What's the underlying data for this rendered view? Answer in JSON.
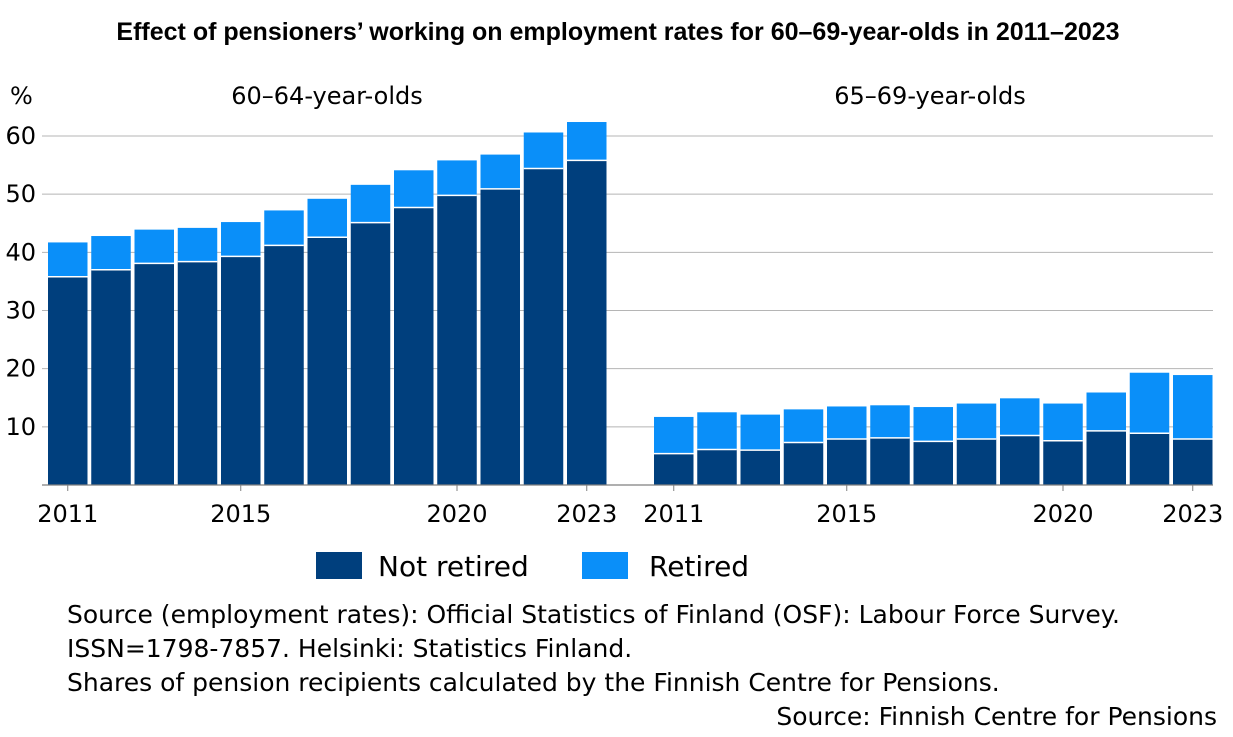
{
  "chart_data": {
    "type": "bar",
    "stacked": true,
    "title": "Effect of pensioners’ working on employment rates for 60–69-year-olds in 2011–2023",
    "ylabel": "%",
    "ylim": [
      0,
      65
    ],
    "yticks": [
      10,
      20,
      30,
      40,
      50,
      60
    ],
    "grid": true,
    "legend_position": "bottom",
    "colors": {
      "not_retired": "#003f7d",
      "retired": "#0a8ff9",
      "grid": "#b5b5b5",
      "axis": "#7f7f7f"
    },
    "legend": [
      {
        "key": "not_retired",
        "label": "Not retired"
      },
      {
        "key": "retired",
        "label": "Retired"
      }
    ],
    "panels": [
      {
        "label": "60–64-year-olds",
        "years": [
          2011,
          2012,
          2013,
          2014,
          2015,
          2016,
          2017,
          2018,
          2019,
          2020,
          2021,
          2022,
          2023
        ],
        "tick_labels": [
          "2011",
          "2015",
          "2020",
          "2023"
        ],
        "tick_years": [
          2011,
          2015,
          2020,
          2023
        ],
        "series": [
          {
            "name": "Not retired",
            "key": "not_retired",
            "values": [
              35.8,
              37.0,
              38.1,
              38.4,
              39.3,
              41.2,
              42.6,
              45.1,
              47.7,
              49.8,
              50.9,
              54.4,
              55.8
            ]
          },
          {
            "name": "Retired",
            "key": "retired",
            "values": [
              5.9,
              5.8,
              5.8,
              5.8,
              5.9,
              6.0,
              6.6,
              6.5,
              6.4,
              6.0,
              5.9,
              6.2,
              6.6
            ]
          }
        ]
      },
      {
        "label": "65–69-year-olds",
        "years": [
          2011,
          2012,
          2013,
          2014,
          2015,
          2016,
          2017,
          2018,
          2019,
          2020,
          2021,
          2022,
          2023
        ],
        "tick_labels": [
          "2011",
          "2015",
          "2020",
          "2023"
        ],
        "tick_years": [
          2011,
          2015,
          2020,
          2023
        ],
        "series": [
          {
            "name": "Not retired",
            "key": "not_retired",
            "values": [
              5.4,
              6.1,
              6.0,
              7.3,
              7.9,
              8.1,
              7.5,
              7.9,
              8.5,
              7.6,
              9.3,
              8.9,
              7.9
            ]
          },
          {
            "name": "Retired",
            "key": "retired",
            "values": [
              6.3,
              6.4,
              6.1,
              5.7,
              5.6,
              5.6,
              5.9,
              6.1,
              6.4,
              6.4,
              6.6,
              10.4,
              11.0
            ]
          }
        ]
      }
    ]
  },
  "source": {
    "line1": "Source (employment rates): Official Statistics of Finland (OSF): Labour Force Survey.",
    "line2": "ISSN=1798-7857. Helsinki: Statistics Finland.",
    "line3": "Shares of pension recipients calculated by the Finnish Centre for Pensions.",
    "credit": "Source: Finnish Centre for Pensions"
  }
}
